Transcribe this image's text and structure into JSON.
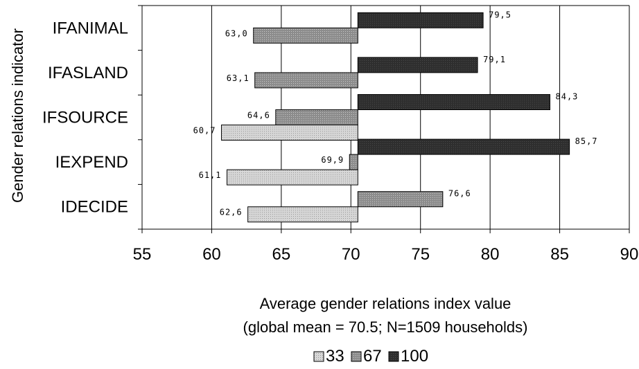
{
  "chart_data": {
    "type": "bar",
    "orientation": "horizontal",
    "base_value": 70.5,
    "categories": [
      "IFANIMAL",
      "IFASLAND",
      "IFSOURCE",
      "IEXPEND",
      "IDECIDE"
    ],
    "series": [
      {
        "name": "33",
        "values": [
          null,
          null,
          60.7,
          61.1,
          62.6
        ],
        "labels": [
          "",
          "",
          "60,7",
          "61,1",
          "62,6"
        ],
        "color": "#d2d2d2"
      },
      {
        "name": "67",
        "values": [
          63.0,
          63.1,
          64.6,
          69.9,
          76.6
        ],
        "labels": [
          "63,0",
          "63,1",
          "64,6",
          "69,9",
          "76,6"
        ],
        "color": "#8a8a8a"
      },
      {
        "name": "100",
        "values": [
          79.5,
          79.1,
          84.3,
          85.7,
          null
        ],
        "labels": [
          "79,5",
          "79,1",
          "84,3",
          "85,7",
          ""
        ],
        "color": "#333333"
      }
    ],
    "ylabel": "Gender relations indicator",
    "xlabel": "Average gender relations index value",
    "xlabel2": "(global mean = 70.5; N=1509 households)",
    "xlim": [
      55,
      90
    ],
    "xticks": [
      "55",
      "60",
      "65",
      "70",
      "75",
      "80",
      "85",
      "90"
    ],
    "grid": "vertical",
    "legend_position": "bottom"
  }
}
